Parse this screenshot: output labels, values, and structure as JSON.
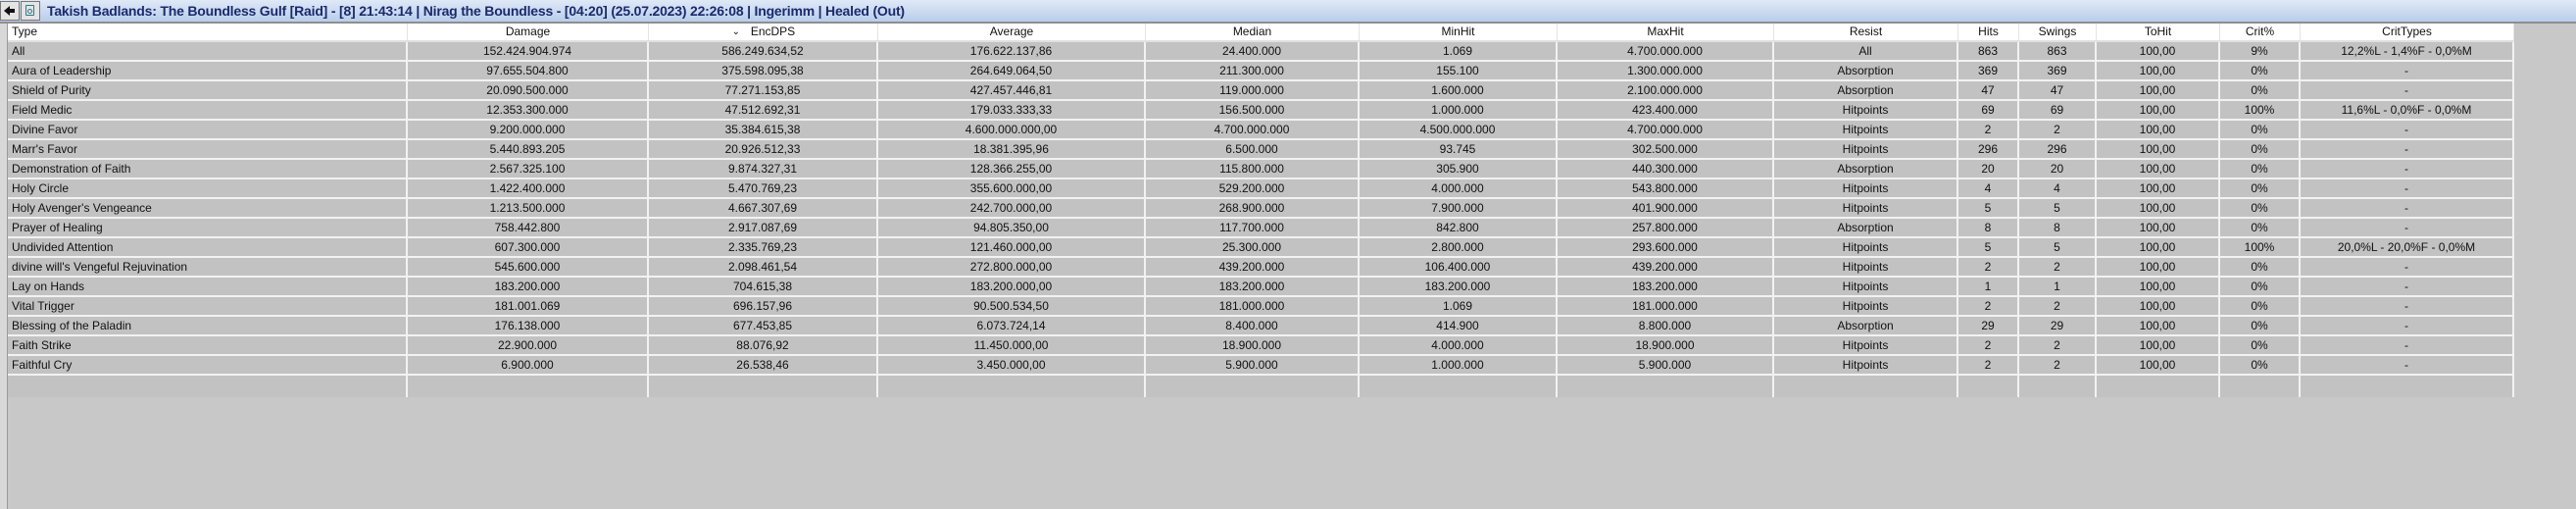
{
  "titlebar": {
    "back_icon": "left-arrow-icon",
    "snapshot_icon": "camera-icon",
    "title": "Takish Badlands: The Boundless Gulf [Raid] - [8] 21:43:14 | Nirag the Boundless - [04:20] (25.07.2023) 22:26:08 | Ingerimm | Healed (Out)"
  },
  "table": {
    "sort_indicator": "⌄",
    "columns": [
      "Type",
      "Damage",
      "EncDPS",
      "Average",
      "Median",
      "MinHit",
      "MaxHit",
      "Resist",
      "Hits",
      "Swings",
      "ToHit",
      "Crit%",
      "CritTypes"
    ],
    "sorted_column": "EncDPS",
    "rows": [
      [
        "All",
        "152.424.904.974",
        "586.249.634,52",
        "176.622.137,86",
        "24.400.000",
        "1.069",
        "4.700.000.000",
        "All",
        "863",
        "863",
        "100,00",
        "9%",
        "12,2%L - 1,4%F - 0,0%M"
      ],
      [
        "Aura of Leadership",
        "97.655.504.800",
        "375.598.095,38",
        "264.649.064,50",
        "211.300.000",
        "155.100",
        "1.300.000.000",
        "Absorption",
        "369",
        "369",
        "100,00",
        "0%",
        "-"
      ],
      [
        "Shield of Purity",
        "20.090.500.000",
        "77.271.153,85",
        "427.457.446,81",
        "119.000.000",
        "1.600.000",
        "2.100.000.000",
        "Absorption",
        "47",
        "47",
        "100,00",
        "0%",
        "-"
      ],
      [
        "Field Medic",
        "12.353.300.000",
        "47.512.692,31",
        "179.033.333,33",
        "156.500.000",
        "1.000.000",
        "423.400.000",
        "Hitpoints",
        "69",
        "69",
        "100,00",
        "100%",
        "11,6%L - 0,0%F - 0,0%M"
      ],
      [
        "Divine Favor",
        "9.200.000.000",
        "35.384.615,38",
        "4.600.000.000,00",
        "4.700.000.000",
        "4.500.000.000",
        "4.700.000.000",
        "Hitpoints",
        "2",
        "2",
        "100,00",
        "0%",
        "-"
      ],
      [
        "Marr's Favor",
        "5.440.893.205",
        "20.926.512,33",
        "18.381.395,96",
        "6.500.000",
        "93.745",
        "302.500.000",
        "Hitpoints",
        "296",
        "296",
        "100,00",
        "0%",
        "-"
      ],
      [
        "Demonstration of Faith",
        "2.567.325.100",
        "9.874.327,31",
        "128.366.255,00",
        "115.800.000",
        "305.900",
        "440.300.000",
        "Absorption",
        "20",
        "20",
        "100,00",
        "0%",
        "-"
      ],
      [
        "Holy Circle",
        "1.422.400.000",
        "5.470.769,23",
        "355.600.000,00",
        "529.200.000",
        "4.000.000",
        "543.800.000",
        "Hitpoints",
        "4",
        "4",
        "100,00",
        "0%",
        "-"
      ],
      [
        "Holy Avenger's Vengeance",
        "1.213.500.000",
        "4.667.307,69",
        "242.700.000,00",
        "268.900.000",
        "7.900.000",
        "401.900.000",
        "Hitpoints",
        "5",
        "5",
        "100,00",
        "0%",
        "-"
      ],
      [
        "Prayer of Healing",
        "758.442.800",
        "2.917.087,69",
        "94.805.350,00",
        "117.700.000",
        "842.800",
        "257.800.000",
        "Absorption",
        "8",
        "8",
        "100,00",
        "0%",
        "-"
      ],
      [
        "Undivided Attention",
        "607.300.000",
        "2.335.769,23",
        "121.460.000,00",
        "25.300.000",
        "2.800.000",
        "293.600.000",
        "Hitpoints",
        "5",
        "5",
        "100,00",
        "100%",
        "20,0%L - 20,0%F - 0,0%M"
      ],
      [
        "divine will's Vengeful Rejuvination",
        "545.600.000",
        "2.098.461,54",
        "272.800.000,00",
        "439.200.000",
        "106.400.000",
        "439.200.000",
        "Hitpoints",
        "2",
        "2",
        "100,00",
        "0%",
        "-"
      ],
      [
        "Lay on Hands",
        "183.200.000",
        "704.615,38",
        "183.200.000,00",
        "183.200.000",
        "183.200.000",
        "183.200.000",
        "Hitpoints",
        "1",
        "1",
        "100,00",
        "0%",
        "-"
      ],
      [
        "Vital Trigger",
        "181.001.069",
        "696.157,96",
        "90.500.534,50",
        "181.000.000",
        "1.069",
        "181.000.000",
        "Hitpoints",
        "2",
        "2",
        "100,00",
        "0%",
        "-"
      ],
      [
        "Blessing of the Paladin",
        "176.138.000",
        "677.453,85",
        "6.073.724,14",
        "8.400.000",
        "414.900",
        "8.800.000",
        "Absorption",
        "29",
        "29",
        "100,00",
        "0%",
        "-"
      ],
      [
        "Faith Strike",
        "22.900.000",
        "88.076,92",
        "11.450.000,00",
        "18.900.000",
        "4.000.000",
        "18.900.000",
        "Hitpoints",
        "2",
        "2",
        "100,00",
        "0%",
        "-"
      ],
      [
        "Faithful Cry",
        "6.900.000",
        "26.538,46",
        "3.450.000,00",
        "5.900.000",
        "1.000.000",
        "5.900.000",
        "Hitpoints",
        "2",
        "2",
        "100,00",
        "0%",
        "-"
      ]
    ]
  }
}
